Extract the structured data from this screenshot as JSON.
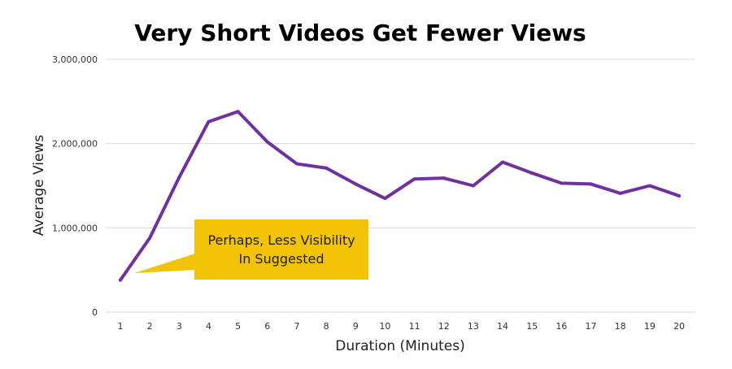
{
  "colors": {
    "series": "#7030a0",
    "annotation_fill": "#f2c307"
  },
  "annotation": {
    "line1": "Perhaps, Less Visibility",
    "line2": "In Suggested"
  },
  "chart_data": {
    "type": "line",
    "title": "Very Short Videos Get Fewer Views",
    "xlabel": "Duration (Minutes)",
    "ylabel": "Average Views",
    "x": [
      1,
      2,
      3,
      4,
      5,
      6,
      7,
      8,
      9,
      10,
      11,
      12,
      13,
      14,
      15,
      16,
      17,
      18,
      19,
      20
    ],
    "series": [
      {
        "values": [
          380000,
          880000,
          1600000,
          2260000,
          2380000,
          2020000,
          1760000,
          1710000,
          1520000,
          1350000,
          1580000,
          1590000,
          1500000,
          1780000,
          1650000,
          1530000,
          1520000,
          1410000,
          1500000,
          1380000
        ]
      }
    ],
    "yticks": [
      "0",
      "1,000,000",
      "2,000,000",
      "3,000,000"
    ],
    "ylim": [
      0,
      3000000
    ],
    "grid": true,
    "legend": "none"
  }
}
